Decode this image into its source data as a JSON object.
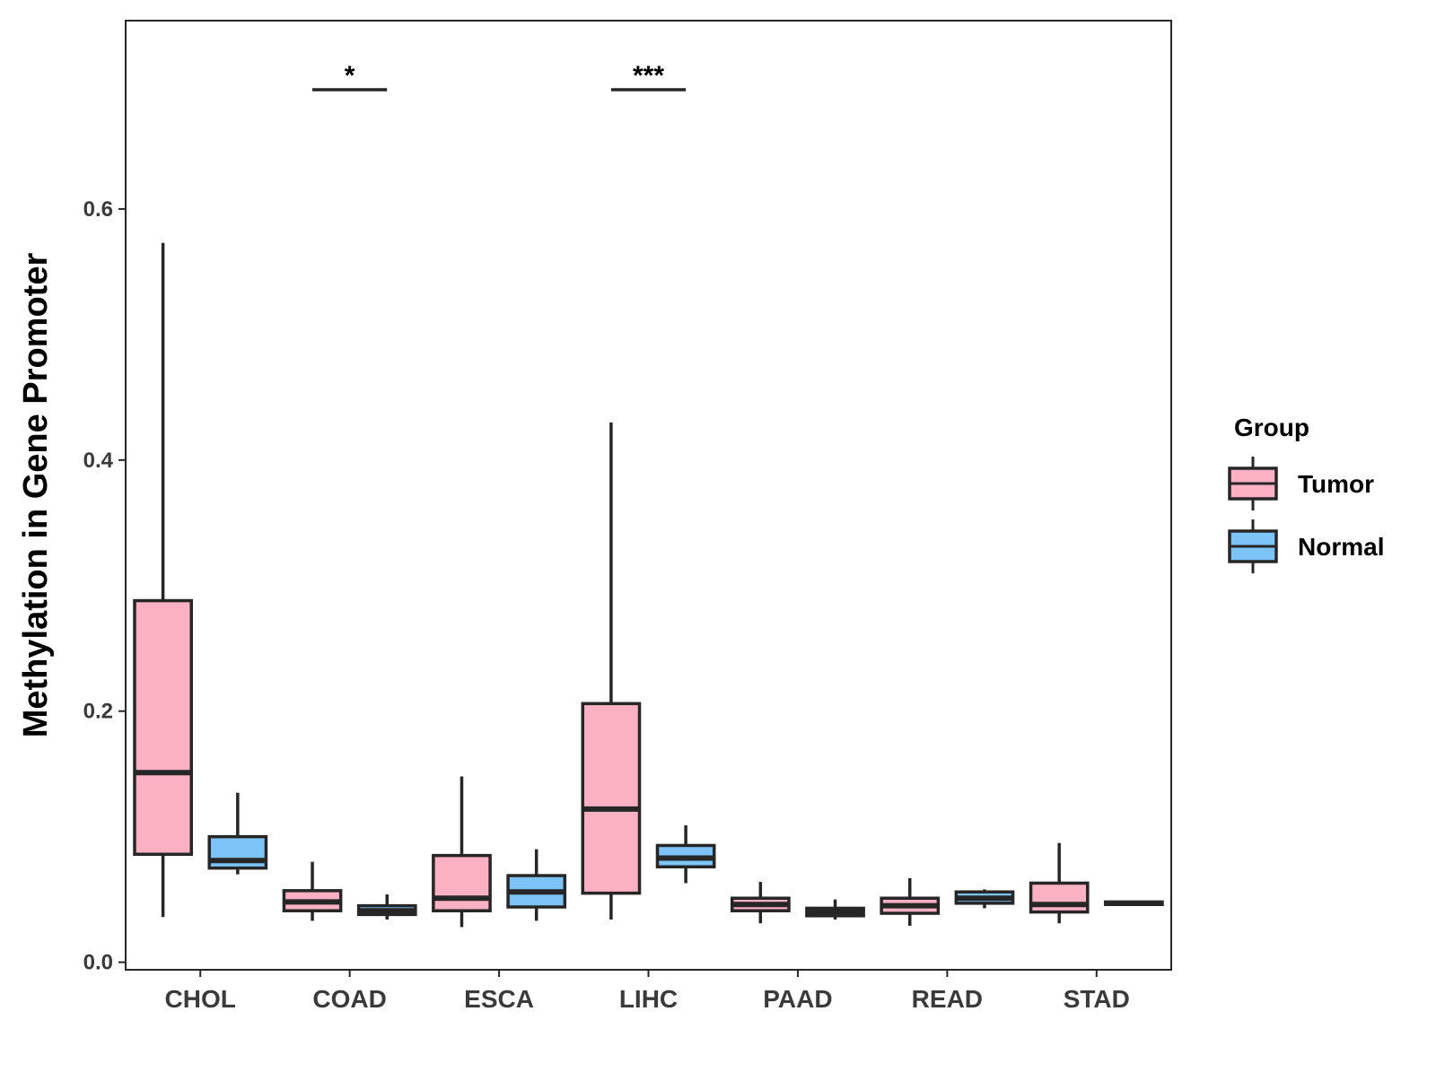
{
  "chart_data": {
    "type": "boxplot",
    "ylabel": "Methylation in Gene Promoter",
    "xlabel": "",
    "ylim": [
      -0.006,
      0.75
    ],
    "yticks": [
      0.0,
      0.2,
      0.4,
      0.6
    ],
    "ytick_labels": [
      "0.0",
      "0.2",
      "0.4",
      "0.6"
    ],
    "grid": false,
    "categories": [
      "CHOL",
      "COAD",
      "ESCA",
      "LIHC",
      "PAAD",
      "READ",
      "STAD"
    ],
    "legend": {
      "title": "Group",
      "position": "right",
      "entries": [
        "Tumor",
        "Normal"
      ]
    },
    "colors": {
      "Tumor": "#fbb1c3",
      "Normal": "#7cc4f8",
      "outline": "#262626"
    },
    "series": [
      {
        "name": "Tumor",
        "boxes": [
          {
            "whisker_low": 0.036,
            "q1": 0.086,
            "median": 0.151,
            "q3": 0.288,
            "whisker_high": 0.573
          },
          {
            "whisker_low": 0.033,
            "q1": 0.041,
            "median": 0.048,
            "q3": 0.057,
            "whisker_high": 0.08
          },
          {
            "whisker_low": 0.028,
            "q1": 0.041,
            "median": 0.051,
            "q3": 0.085,
            "whisker_high": 0.148
          },
          {
            "whisker_low": 0.034,
            "q1": 0.055,
            "median": 0.122,
            "q3": 0.206,
            "whisker_high": 0.43
          },
          {
            "whisker_low": 0.031,
            "q1": 0.041,
            "median": 0.046,
            "q3": 0.051,
            "whisker_high": 0.064
          },
          {
            "whisker_low": 0.029,
            "q1": 0.039,
            "median": 0.045,
            "q3": 0.051,
            "whisker_high": 0.067
          },
          {
            "whisker_low": 0.031,
            "q1": 0.04,
            "median": 0.046,
            "q3": 0.063,
            "whisker_high": 0.095
          }
        ]
      },
      {
        "name": "Normal",
        "boxes": [
          {
            "whisker_low": 0.07,
            "q1": 0.075,
            "median": 0.081,
            "q3": 0.1,
            "whisker_high": 0.135
          },
          {
            "whisker_low": 0.034,
            "q1": 0.038,
            "median": 0.041,
            "q3": 0.045,
            "whisker_high": 0.054
          },
          {
            "whisker_low": 0.033,
            "q1": 0.044,
            "median": 0.056,
            "q3": 0.069,
            "whisker_high": 0.09
          },
          {
            "whisker_low": 0.063,
            "q1": 0.076,
            "median": 0.083,
            "q3": 0.093,
            "whisker_high": 0.109
          },
          {
            "whisker_low": 0.034,
            "q1": 0.037,
            "median": 0.04,
            "q3": 0.043,
            "whisker_high": 0.05
          },
          {
            "whisker_low": 0.043,
            "q1": 0.047,
            "median": 0.051,
            "q3": 0.056,
            "whisker_high": 0.058
          },
          {
            "whisker_low": 0.045,
            "q1": 0.046,
            "median": 0.047,
            "q3": 0.048,
            "whisker_high": 0.049
          }
        ]
      }
    ],
    "annotations": [
      {
        "category": "COAD",
        "label": "*",
        "y": 0.695
      },
      {
        "category": "LIHC",
        "label": "***",
        "y": 0.695
      }
    ]
  }
}
